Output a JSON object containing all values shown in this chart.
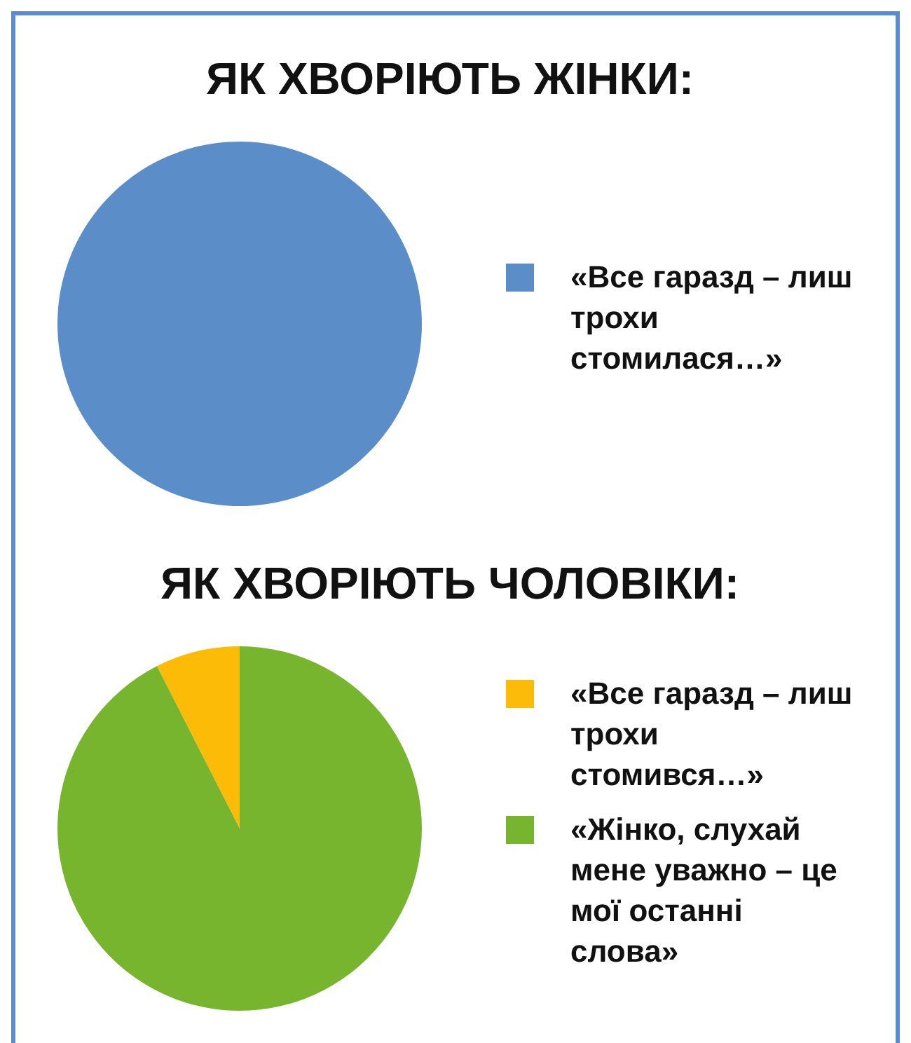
{
  "chart_data": [
    {
      "type": "pie",
      "title": "ЯК ХВОРІЮТЬ ЖІНКИ:",
      "categories": [
        "«Все гаразд – лиш трохи стомилася…»"
      ],
      "values": [
        100
      ],
      "colors": [
        "#5b8ec9"
      ],
      "legend": "right"
    },
    {
      "type": "pie",
      "title": "ЯК ХВОРІЮТЬ ЧОЛОВІКИ:",
      "categories": [
        "«Все гаразд – лиш трохи стомився…»",
        "«Жінко, слухай мене уважно – це мої останні слова»"
      ],
      "values": [
        7.5,
        92.5
      ],
      "colors": [
        "#fbbb06",
        "#77b52f"
      ],
      "legend": "right"
    }
  ]
}
